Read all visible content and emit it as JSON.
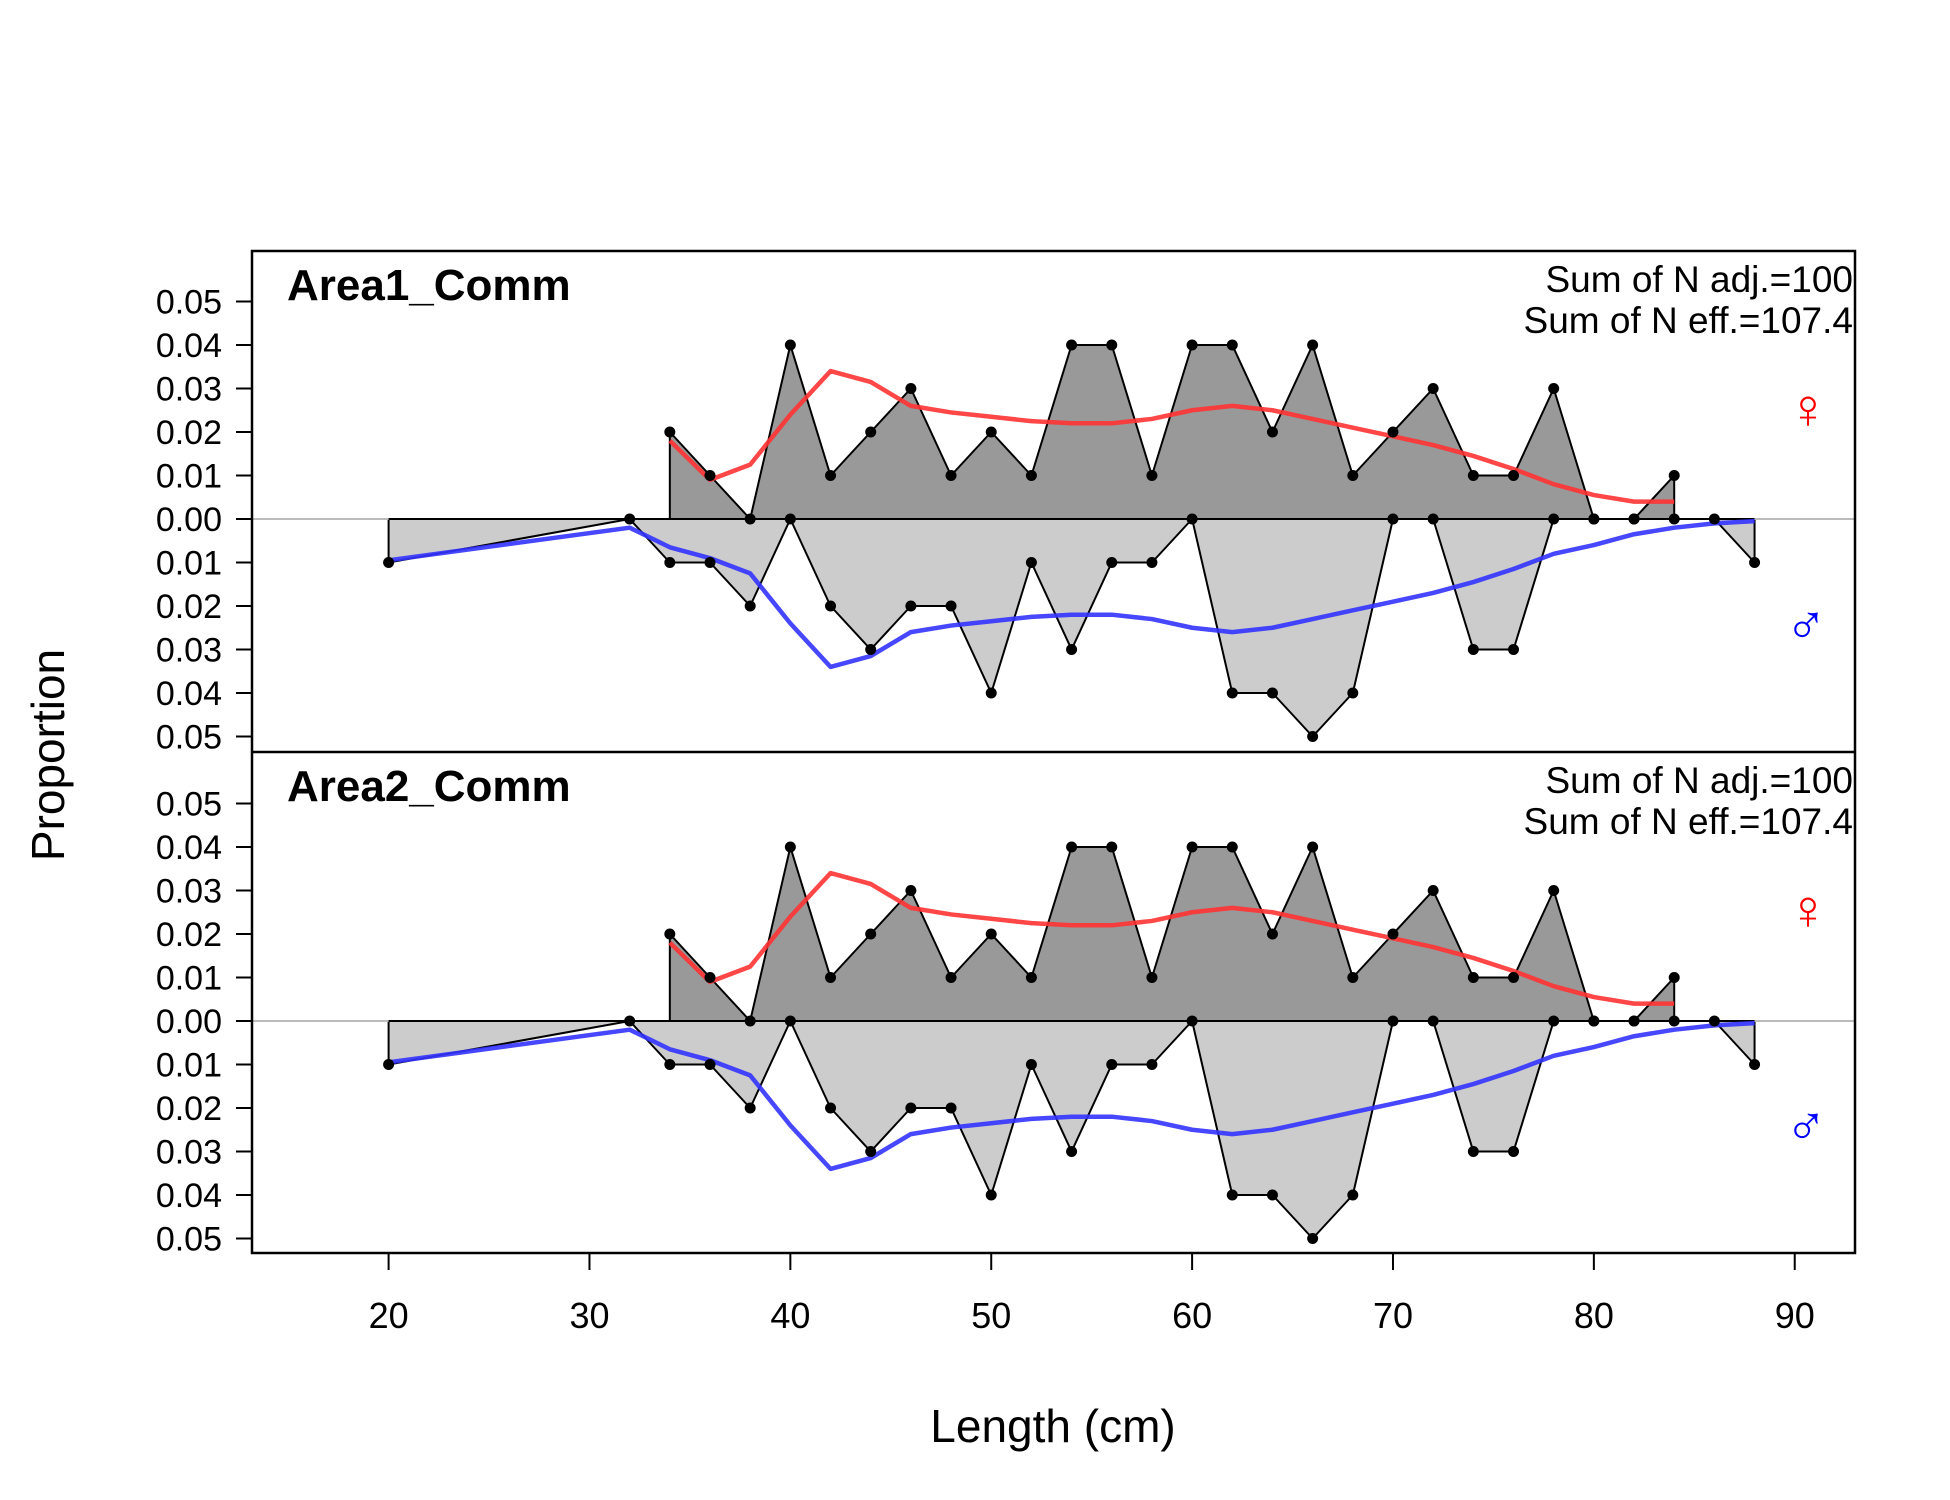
{
  "chart_data": {
    "type": "area",
    "xlabel": "Length (cm)",
    "ylabel": "Proportion",
    "xlim": [
      13.2,
      93
    ],
    "ylim": [
      -0.0535,
      0.0535
    ],
    "xticks": [
      20,
      30,
      40,
      50,
      60,
      70,
      80,
      90
    ],
    "xtick_labels": [
      "20",
      "30",
      "40",
      "50",
      "60",
      "70",
      "80",
      "90"
    ],
    "yticks": [
      0.05,
      0.04,
      0.03,
      0.02,
      0.01,
      0.0,
      -0.01,
      -0.02,
      -0.03,
      -0.04,
      -0.05
    ],
    "ytick_labels": [
      "0.05",
      "0.04",
      "0.03",
      "0.02",
      "0.01",
      "0.00",
      "0.01",
      "0.02",
      "0.03",
      "0.04",
      "0.05"
    ],
    "colors": {
      "female_fill": "#999999",
      "male_fill": "#cccccc",
      "female_fit": "#ff3333",
      "male_fit": "#3333ff",
      "zero_line": "#bbbbbb",
      "points": "#000000",
      "female_symbol": "#ff0000",
      "male_symbol": "#0000ff"
    },
    "symbols": {
      "female": "♀",
      "male": "♂"
    },
    "panels": [
      {
        "title": "Area1_Comm",
        "annotation_line1": "Sum of N adj.=100",
        "annotation_line2": "Sum of N eff.=107.4",
        "female_obs": {
          "x": [
            34,
            36,
            38,
            40,
            42,
            44,
            46,
            48,
            50,
            52,
            54,
            56,
            58,
            60,
            62,
            64,
            66,
            68,
            70,
            72,
            74,
            76,
            78,
            80,
            82,
            84
          ],
          "y": [
            0.02,
            0.01,
            0.0,
            0.04,
            0.01,
            0.02,
            0.03,
            0.01,
            0.02,
            0.01,
            0.04,
            0.04,
            0.01,
            0.04,
            0.04,
            0.02,
            0.04,
            0.01,
            0.02,
            0.03,
            0.01,
            0.01,
            0.03,
            0.0,
            0.0,
            0.01
          ]
        },
        "female_exp": {
          "x": [
            34,
            36,
            38,
            40,
            42,
            44,
            46,
            48,
            50,
            52,
            54,
            56,
            58,
            60,
            62,
            64,
            66,
            68,
            70,
            72,
            74,
            76,
            78,
            80,
            82,
            84
          ],
          "y": [
            0.018,
            0.009,
            0.0125,
            0.024,
            0.034,
            0.0315,
            0.026,
            0.0245,
            0.0235,
            0.0225,
            0.022,
            0.022,
            0.023,
            0.025,
            0.026,
            0.025,
            0.023,
            0.021,
            0.019,
            0.017,
            0.0145,
            0.0115,
            0.008,
            0.0055,
            0.004,
            0.004
          ]
        },
        "male_obs": {
          "x": [
            20,
            32,
            34,
            36,
            38,
            40,
            42,
            44,
            46,
            48,
            50,
            52,
            54,
            56,
            58,
            60,
            62,
            64,
            66,
            68,
            70,
            72,
            74,
            76,
            78,
            80,
            82,
            84,
            86,
            88
          ],
          "y": [
            0.01,
            0.0,
            0.01,
            0.01,
            0.02,
            0.0,
            0.02,
            0.03,
            0.02,
            0.02,
            0.04,
            0.01,
            0.03,
            0.01,
            0.01,
            0.0,
            0.04,
            0.04,
            0.05,
            0.04,
            0.0,
            0.0,
            0.03,
            0.03,
            0.0,
            0.0,
            0.0,
            0.0,
            0.0,
            0.01
          ]
        },
        "male_exp": {
          "x": [
            20,
            32,
            34,
            36,
            38,
            40,
            42,
            44,
            46,
            48,
            50,
            52,
            54,
            56,
            58,
            60,
            62,
            64,
            66,
            68,
            70,
            72,
            74,
            76,
            78,
            80,
            82,
            84,
            86,
            88
          ],
          "y": [
            0.0095,
            0.002,
            0.0065,
            0.009,
            0.0125,
            0.024,
            0.034,
            0.0315,
            0.026,
            0.0245,
            0.0235,
            0.0225,
            0.022,
            0.022,
            0.023,
            0.025,
            0.026,
            0.025,
            0.023,
            0.021,
            0.019,
            0.017,
            0.0145,
            0.0115,
            0.008,
            0.006,
            0.0035,
            0.002,
            0.001,
            0.0005
          ]
        }
      },
      {
        "title": "Area2_Comm",
        "annotation_line1": "Sum of N adj.=100",
        "annotation_line2": "Sum of N eff.=107.4",
        "female_obs": {
          "x": [
            34,
            36,
            38,
            40,
            42,
            44,
            46,
            48,
            50,
            52,
            54,
            56,
            58,
            60,
            62,
            64,
            66,
            68,
            70,
            72,
            74,
            76,
            78,
            80,
            82,
            84
          ],
          "y": [
            0.02,
            0.01,
            0.0,
            0.04,
            0.01,
            0.02,
            0.03,
            0.01,
            0.02,
            0.01,
            0.04,
            0.04,
            0.01,
            0.04,
            0.04,
            0.02,
            0.04,
            0.01,
            0.02,
            0.03,
            0.01,
            0.01,
            0.03,
            0.0,
            0.0,
            0.01
          ]
        },
        "female_exp": {
          "x": [
            34,
            36,
            38,
            40,
            42,
            44,
            46,
            48,
            50,
            52,
            54,
            56,
            58,
            60,
            62,
            64,
            66,
            68,
            70,
            72,
            74,
            76,
            78,
            80,
            82,
            84
          ],
          "y": [
            0.018,
            0.009,
            0.0125,
            0.024,
            0.034,
            0.0315,
            0.026,
            0.0245,
            0.0235,
            0.0225,
            0.022,
            0.022,
            0.023,
            0.025,
            0.026,
            0.025,
            0.023,
            0.021,
            0.019,
            0.017,
            0.0145,
            0.0115,
            0.008,
            0.0055,
            0.004,
            0.004
          ]
        },
        "male_obs": {
          "x": [
            20,
            32,
            34,
            36,
            38,
            40,
            42,
            44,
            46,
            48,
            50,
            52,
            54,
            56,
            58,
            60,
            62,
            64,
            66,
            68,
            70,
            72,
            74,
            76,
            78,
            80,
            82,
            84,
            86,
            88
          ],
          "y": [
            0.01,
            0.0,
            0.01,
            0.01,
            0.02,
            0.0,
            0.02,
            0.03,
            0.02,
            0.02,
            0.04,
            0.01,
            0.03,
            0.01,
            0.01,
            0.0,
            0.04,
            0.04,
            0.05,
            0.04,
            0.0,
            0.0,
            0.03,
            0.03,
            0.0,
            0.0,
            0.0,
            0.0,
            0.0,
            0.01
          ]
        },
        "male_exp": {
          "x": [
            20,
            32,
            34,
            36,
            38,
            40,
            42,
            44,
            46,
            48,
            50,
            52,
            54,
            56,
            58,
            60,
            62,
            64,
            66,
            68,
            70,
            72,
            74,
            76,
            78,
            80,
            82,
            84,
            86,
            88
          ],
          "y": [
            0.0095,
            0.002,
            0.0065,
            0.009,
            0.0125,
            0.024,
            0.034,
            0.0315,
            0.026,
            0.0245,
            0.0235,
            0.0225,
            0.022,
            0.022,
            0.023,
            0.025,
            0.026,
            0.025,
            0.023,
            0.021,
            0.019,
            0.017,
            0.0145,
            0.0115,
            0.008,
            0.006,
            0.0035,
            0.002,
            0.001,
            0.0005
          ]
        }
      }
    ]
  }
}
